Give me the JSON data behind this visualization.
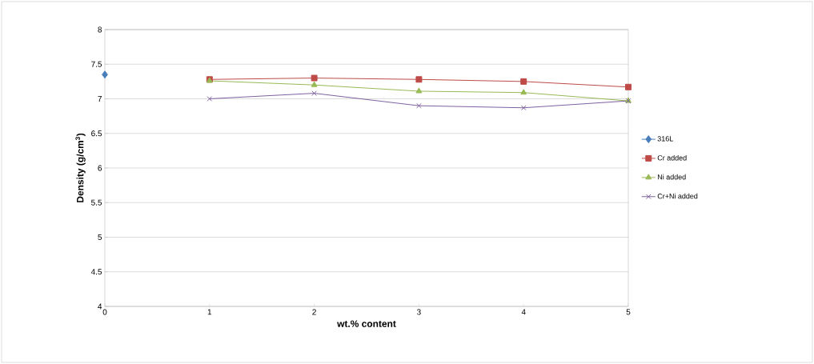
{
  "chart_data": {
    "type": "line",
    "xlabel": "wt.% content",
    "ylabel": "Density (g/cm$^{3}$)",
    "x": [
      0,
      1,
      2,
      3,
      4,
      5
    ],
    "series": [
      {
        "name": "316L",
        "color": "#4a7ebb",
        "marker": "diamond",
        "values": [
          7.35,
          null,
          null,
          null,
          null,
          null
        ]
      },
      {
        "name": "Cr added",
        "color": "#be4b48",
        "marker": "square",
        "values": [
          null,
          7.28,
          7.3,
          7.28,
          7.25,
          7.17
        ]
      },
      {
        "name": "Ni added",
        "color": "#98b954",
        "marker": "triangle",
        "values": [
          null,
          7.26,
          7.2,
          7.11,
          7.09,
          6.97
        ]
      },
      {
        "name": "Cr+Ni added",
        "color": "#7d60a0",
        "marker": "cross",
        "values": [
          null,
          7.0,
          7.08,
          6.9,
          6.87,
          6.97
        ]
      }
    ],
    "xlim": [
      0,
      5
    ],
    "xticks": [
      0,
      1,
      2,
      3,
      4,
      5
    ],
    "ylim": [
      4,
      8
    ],
    "yticks": [
      4,
      4.5,
      5,
      5.5,
      6,
      6.5,
      7,
      7.5,
      8
    ],
    "grid": "y",
    "legend": "right"
  }
}
